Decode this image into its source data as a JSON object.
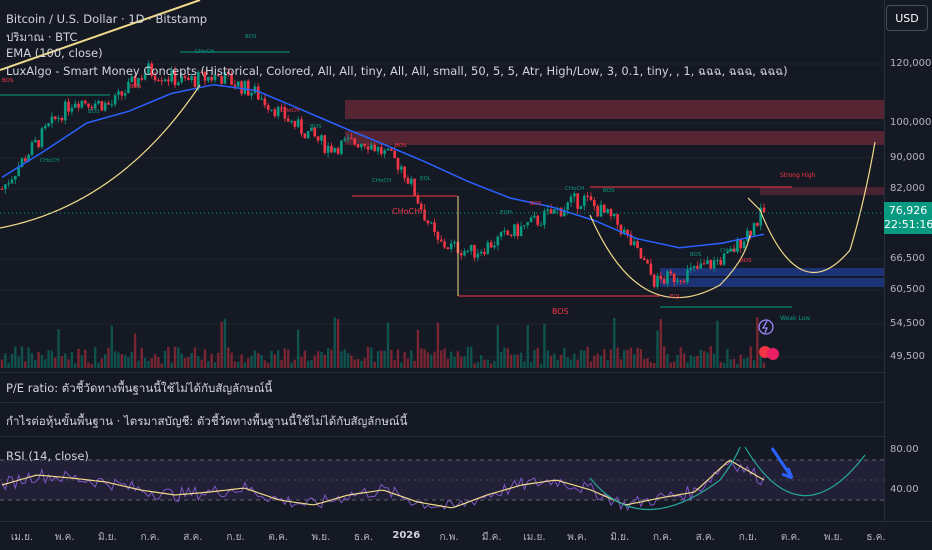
{
  "header": {
    "title": "Bitcoin / U.S. Dollar · 1D · Bitstamp",
    "volume_label": "ปริมาณ · BTC",
    "ema_label": "EMA (100, close)",
    "smc_label": "LuxAlgo - Smart Money Concepts (Historical, Colored, All, All, tiny, All, All, small, 50, 5, 5, Atr, High/Low, 3, 0.1, tiny, , 1, ฉฉฉ, ฉฉฉ, ฉฉฉ)"
  },
  "currency_button": "USD",
  "price_tag": {
    "price": "76,926",
    "countdown": "22:51:16"
  },
  "y_axis_labels": [
    "120,000",
    "100,000",
    "90,000",
    "82,000",
    "66,500",
    "60,500",
    "54,500",
    "49,500"
  ],
  "x_axis_labels": [
    "เม.ย.",
    "พ.ค.",
    "มิ.ย.",
    "ก.ค.",
    "ส.ค.",
    "ก.ย.",
    "ต.ค.",
    "พ.ย.",
    "ธ.ค.",
    "2026",
    "ก.พ.",
    "มี.ค.",
    "เม.ย.",
    "พ.ค.",
    "มิ.ย.",
    "ก.ค.",
    "ส.ค.",
    "ก.ย.",
    "ต.ค.",
    "พ.ย.",
    "ธ.ค."
  ],
  "pe_ratio_text": "P/E ratio: ตัวชี้วัดทางพื้นฐานนี้ใช้ไม่ได้กับสัญลักษณ์นี้",
  "eps_text": "กำไรต่อหุ้นขั้นพื้นฐาน · ไตรมาสบัญชี: ตัวชี้วัดทางพื้นฐานนี้ใช้ไม่ได้กับสัญลักษณ์นี้",
  "rsi": {
    "label": "RSI (14, close)",
    "axis_labels": [
      "80.00",
      "40.00"
    ]
  },
  "annotations": {
    "strong_high": "Strong High",
    "weak_low": "Weak Low",
    "choch_main": "CHoCH",
    "bos_main": "BOS",
    "small_labels": [
      "BOS",
      "CHoCH",
      "BOS",
      "BOS",
      "CHoCH",
      "BOS",
      "CHoCH",
      "BOS",
      "CHoCH",
      "BOS",
      "EQL",
      "EQH",
      "BOS",
      "CHoCH",
      "BOS",
      "EQL",
      "BOS",
      "CHoCH",
      "BOS"
    ]
  },
  "colors": {
    "background": "#151924",
    "up": "#089981",
    "down": "#f23645",
    "ema": "#2962ff",
    "curve": "#f0d98a",
    "rsi_line": "#7e57c2",
    "rsi_band": "#26a69a"
  },
  "chart_data": {
    "type": "candlestick",
    "title": "Bitcoin / U.S. Dollar · 1D · Bitstamp",
    "yticks": [
      120000,
      100000,
      90000,
      82000,
      66500,
      60500,
      54500,
      49500
    ],
    "last_price": 76926,
    "series": [
      {
        "name": "EMA (100, close)",
        "values_approx": [
          85000,
          92000,
          100000,
          104000,
          110000,
          113000,
          111000,
          105000,
          99000,
          94000,
          89000,
          84000,
          80000,
          78000,
          75000,
          71000,
          69000,
          70000,
          72000
        ]
      }
    ],
    "close_approx": [
      82000,
      95000,
      108000,
      106000,
      118000,
      114000,
      116000,
      110000,
      100000,
      93000,
      95000,
      88000,
      70000,
      68000,
      72000,
      76000,
      80000,
      74000,
      62000,
      64000,
      67000,
      76926
    ],
    "rsi": {
      "values_approx": [
        55,
        65,
        62,
        58,
        50,
        45,
        48,
        52,
        40,
        35,
        45,
        50,
        38,
        32,
        45,
        55,
        60,
        50,
        35,
        42,
        48,
        80,
        60
      ],
      "ylim": [
        20,
        90
      ]
    }
  }
}
